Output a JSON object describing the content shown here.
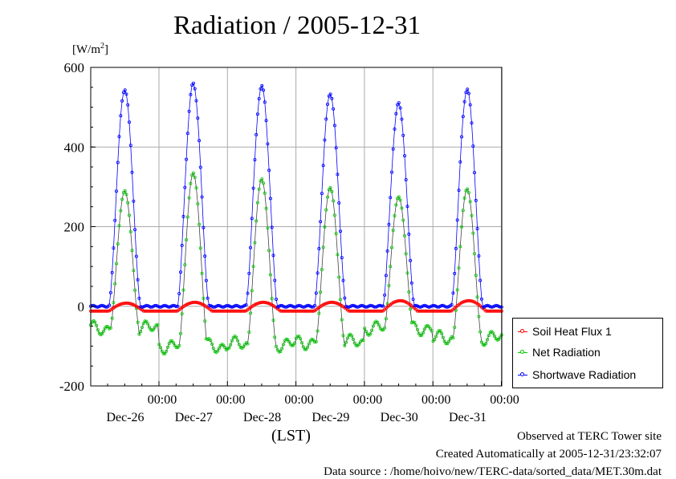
{
  "title": "Radiation / 2005-12-31",
  "unit_label": "[W/m",
  "unit_sup": "2",
  "unit_close": "]",
  "x_axis_label": "(LST)",
  "footer": {
    "line1": "Observed at TERC Tower site",
    "line2": "Created Automatically at 2005-12-31/23:32:07",
    "line3": "Data source : /home/hoivo/new/TERC-data/sorted_data/MET.30m.dat"
  },
  "chart_data": {
    "type": "line",
    "ylim": [
      -200,
      600
    ],
    "y_ticks": [
      -200,
      0,
      200,
      400,
      600
    ],
    "y_tick_labels": [
      "-200",
      "0",
      "200",
      "400",
      "600"
    ],
    "x_range_days": [
      "2005-12-25 00:00",
      "2005-12-31 00:00"
    ],
    "x_ticks": [
      {
        "time": "00:00",
        "date": "Dec-26"
      },
      {
        "time": "00:00",
        "date": "Dec-27"
      },
      {
        "time": "00:00",
        "date": "Dec-28"
      },
      {
        "time": "00:00",
        "date": "Dec-29"
      },
      {
        "time": "00:00",
        "date": "Dec-30"
      },
      {
        "time": "00:00",
        "date": "Dec-31"
      }
    ],
    "grid": true,
    "legend_position": "bottom-right outside",
    "series": [
      {
        "name": "Soil Heat Flux 1",
        "color": "#ff0000",
        "night_value": -12,
        "daily_peaks": [
          8,
          10,
          10,
          10,
          14,
          14
        ]
      },
      {
        "name": "Net Radiation",
        "color": "#00cc00",
        "night_values": [
          -55,
          -100,
          -95,
          -90,
          -55,
          -80
        ],
        "daily_peaks": [
          290,
          335,
          320,
          298,
          275,
          295
        ]
      },
      {
        "name": "Shortwave Radiation",
        "color": "#0000ff",
        "night_value": 0,
        "daily_peaks": [
          545,
          560,
          553,
          535,
          510,
          545
        ]
      }
    ]
  }
}
